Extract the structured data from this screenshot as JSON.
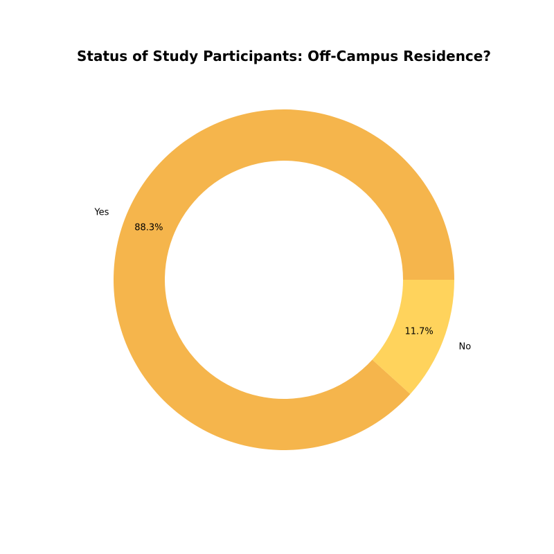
{
  "chart_data": {
    "type": "pie",
    "donut": true,
    "title": "Status of Study Participants: Off-Campus Residence?",
    "categories": [
      "Yes",
      "No"
    ],
    "values": [
      88.3,
      11.7
    ],
    "value_labels": [
      "88.3%",
      "11.7%"
    ],
    "colors": [
      "#F5B54C",
      "#FFD35C"
    ],
    "start_angle_deg": 0,
    "direction": "counterclockwise",
    "legend": "none"
  }
}
